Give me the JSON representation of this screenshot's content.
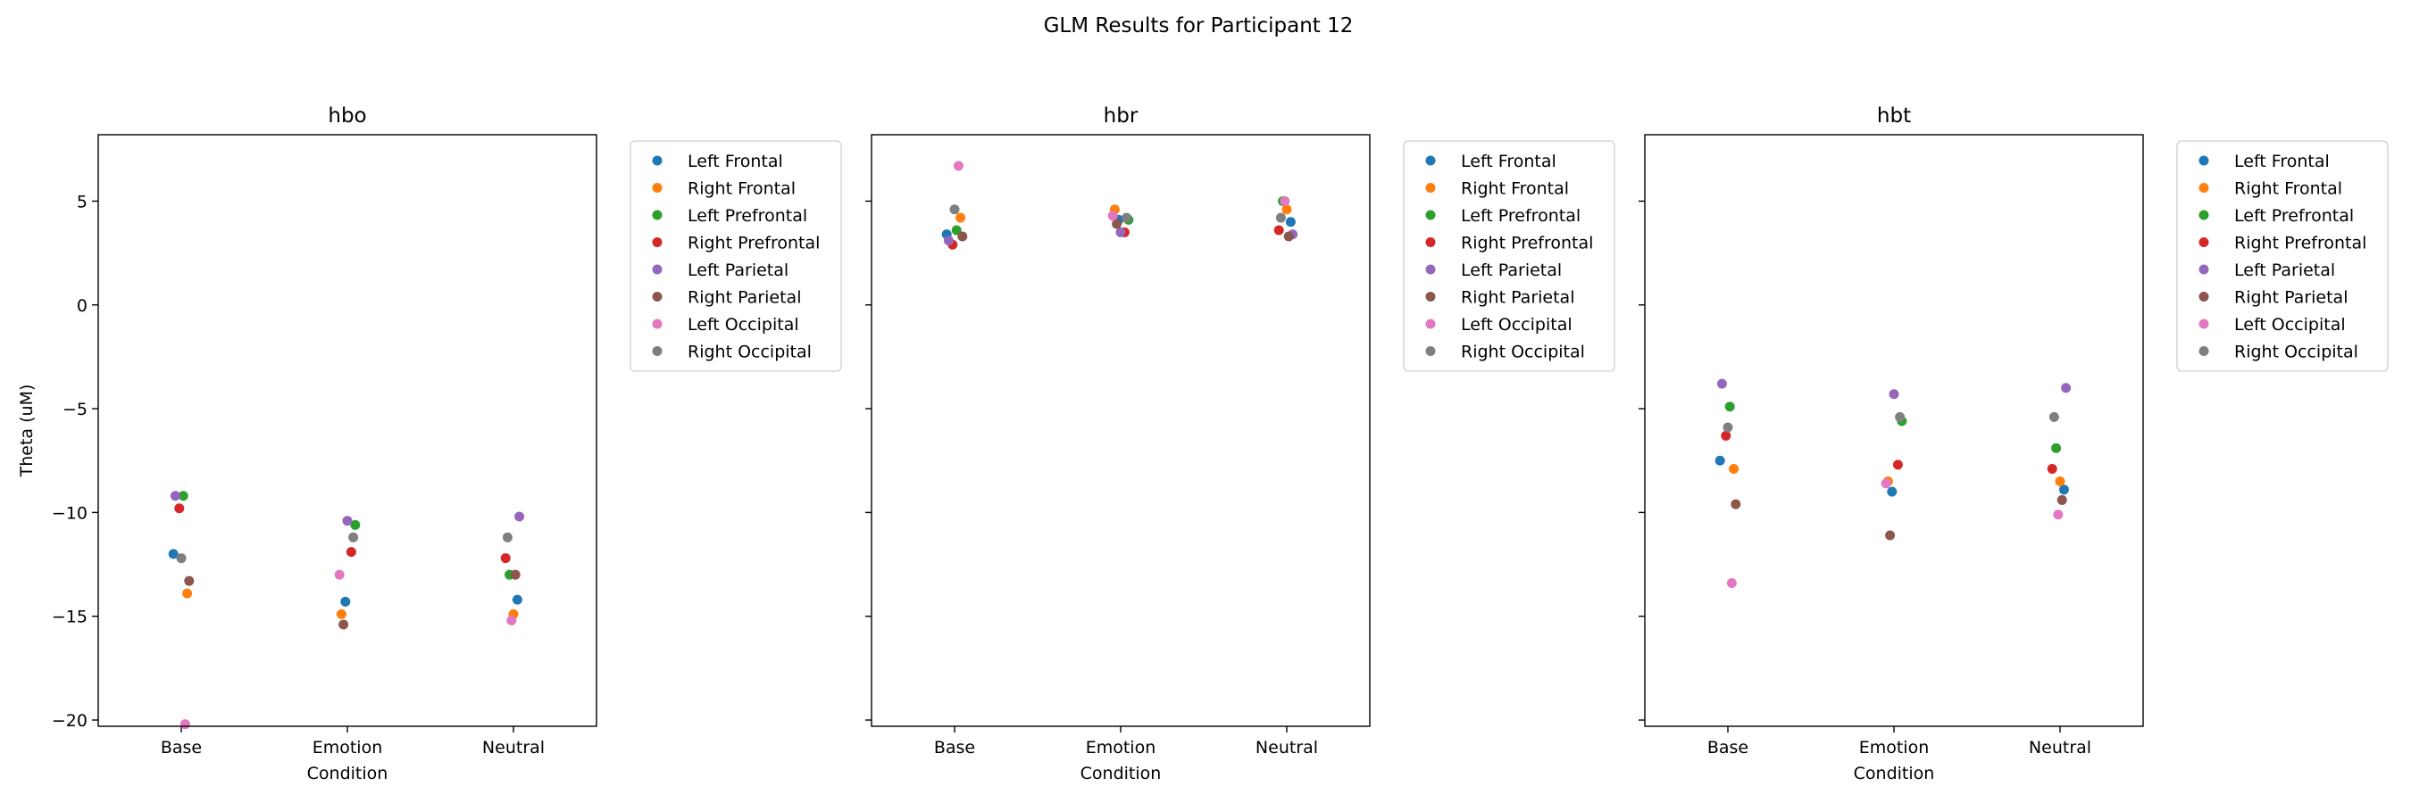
{
  "figure": {
    "suptitle": "GLM Results for Participant 12"
  },
  "chart_data": [
    {
      "type": "scatter",
      "title": "hbo",
      "xlabel": "Condition",
      "ylabel": "Theta (uM)",
      "categories": [
        "Base",
        "Emotion",
        "Neutral"
      ],
      "ylim": [
        -20.3,
        8.2
      ],
      "yticks": [
        -20,
        -15,
        -10,
        -5,
        0,
        5
      ],
      "grid": false,
      "legend_position": "outside-right",
      "series": [
        {
          "name": "Left Frontal",
          "color": "#1f77b4",
          "values": [
            -12.0,
            -14.3,
            -14.2
          ]
        },
        {
          "name": "Right Frontal",
          "color": "#ff7f0e",
          "values": [
            -13.9,
            -14.9,
            -14.9
          ]
        },
        {
          "name": "Left Prefrontal",
          "color": "#2ca02c",
          "values": [
            -9.2,
            -10.6,
            -13.0
          ]
        },
        {
          "name": "Right Prefrontal",
          "color": "#d62728",
          "values": [
            -9.8,
            -11.9,
            -12.2
          ]
        },
        {
          "name": "Left Parietal",
          "color": "#9467bd",
          "values": [
            -9.2,
            -10.4,
            -10.2
          ]
        },
        {
          "name": "Right Parietal",
          "color": "#8c564b",
          "values": [
            -13.3,
            -15.4,
            -13.0
          ]
        },
        {
          "name": "Left Occipital",
          "color": "#e377c2",
          "values": [
            -20.2,
            -13.0,
            -15.2
          ]
        },
        {
          "name": "Right Occipital",
          "color": "#7f7f7f",
          "values": [
            -12.2,
            -11.2,
            -11.2
          ]
        }
      ]
    },
    {
      "type": "scatter",
      "title": "hbr",
      "xlabel": "Condition",
      "ylabel": "",
      "categories": [
        "Base",
        "Emotion",
        "Neutral"
      ],
      "ylim": [
        -20.3,
        8.2
      ],
      "yticks": [
        -20,
        -15,
        -10,
        -5,
        0,
        5
      ],
      "grid": false,
      "legend_position": "outside-right",
      "series": [
        {
          "name": "Left Frontal",
          "color": "#1f77b4",
          "values": [
            3.4,
            4.1,
            4.0
          ]
        },
        {
          "name": "Right Frontal",
          "color": "#ff7f0e",
          "values": [
            4.2,
            4.6,
            4.6
          ]
        },
        {
          "name": "Left Prefrontal",
          "color": "#2ca02c",
          "values": [
            3.6,
            4.1,
            5.0
          ]
        },
        {
          "name": "Right Prefrontal",
          "color": "#d62728",
          "values": [
            2.9,
            3.5,
            3.6
          ]
        },
        {
          "name": "Left Parietal",
          "color": "#9467bd",
          "values": [
            3.1,
            3.5,
            3.4
          ]
        },
        {
          "name": "Right Parietal",
          "color": "#8c564b",
          "values": [
            3.3,
            3.9,
            3.3
          ]
        },
        {
          "name": "Left Occipital",
          "color": "#e377c2",
          "values": [
            6.7,
            4.3,
            5.0
          ]
        },
        {
          "name": "Right Occipital",
          "color": "#7f7f7f",
          "values": [
            4.6,
            4.2,
            4.2
          ]
        }
      ]
    },
    {
      "type": "scatter",
      "title": "hbt",
      "xlabel": "Condition",
      "ylabel": "",
      "categories": [
        "Base",
        "Emotion",
        "Neutral"
      ],
      "ylim": [
        -20.3,
        8.2
      ],
      "yticks": [
        -20,
        -15,
        -10,
        -5,
        0,
        5
      ],
      "grid": false,
      "legend_position": "outside-right",
      "series": [
        {
          "name": "Left Frontal",
          "color": "#1f77b4",
          "values": [
            -7.5,
            -9.0,
            -8.9
          ]
        },
        {
          "name": "Right Frontal",
          "color": "#ff7f0e",
          "values": [
            -7.9,
            -8.5,
            -8.5
          ]
        },
        {
          "name": "Left Prefrontal",
          "color": "#2ca02c",
          "values": [
            -4.9,
            -5.6,
            -6.9
          ]
        },
        {
          "name": "Right Prefrontal",
          "color": "#d62728",
          "values": [
            -6.3,
            -7.7,
            -7.9
          ]
        },
        {
          "name": "Left Parietal",
          "color": "#9467bd",
          "values": [
            -3.8,
            -4.3,
            -4.0
          ]
        },
        {
          "name": "Right Parietal",
          "color": "#8c564b",
          "values": [
            -9.6,
            -11.1,
            -9.4
          ]
        },
        {
          "name": "Left Occipital",
          "color": "#e377c2",
          "values": [
            -13.4,
            -8.6,
            -10.1
          ]
        },
        {
          "name": "Right Occipital",
          "color": "#7f7f7f",
          "values": [
            -5.9,
            -5.4,
            -5.4
          ]
        }
      ]
    }
  ]
}
